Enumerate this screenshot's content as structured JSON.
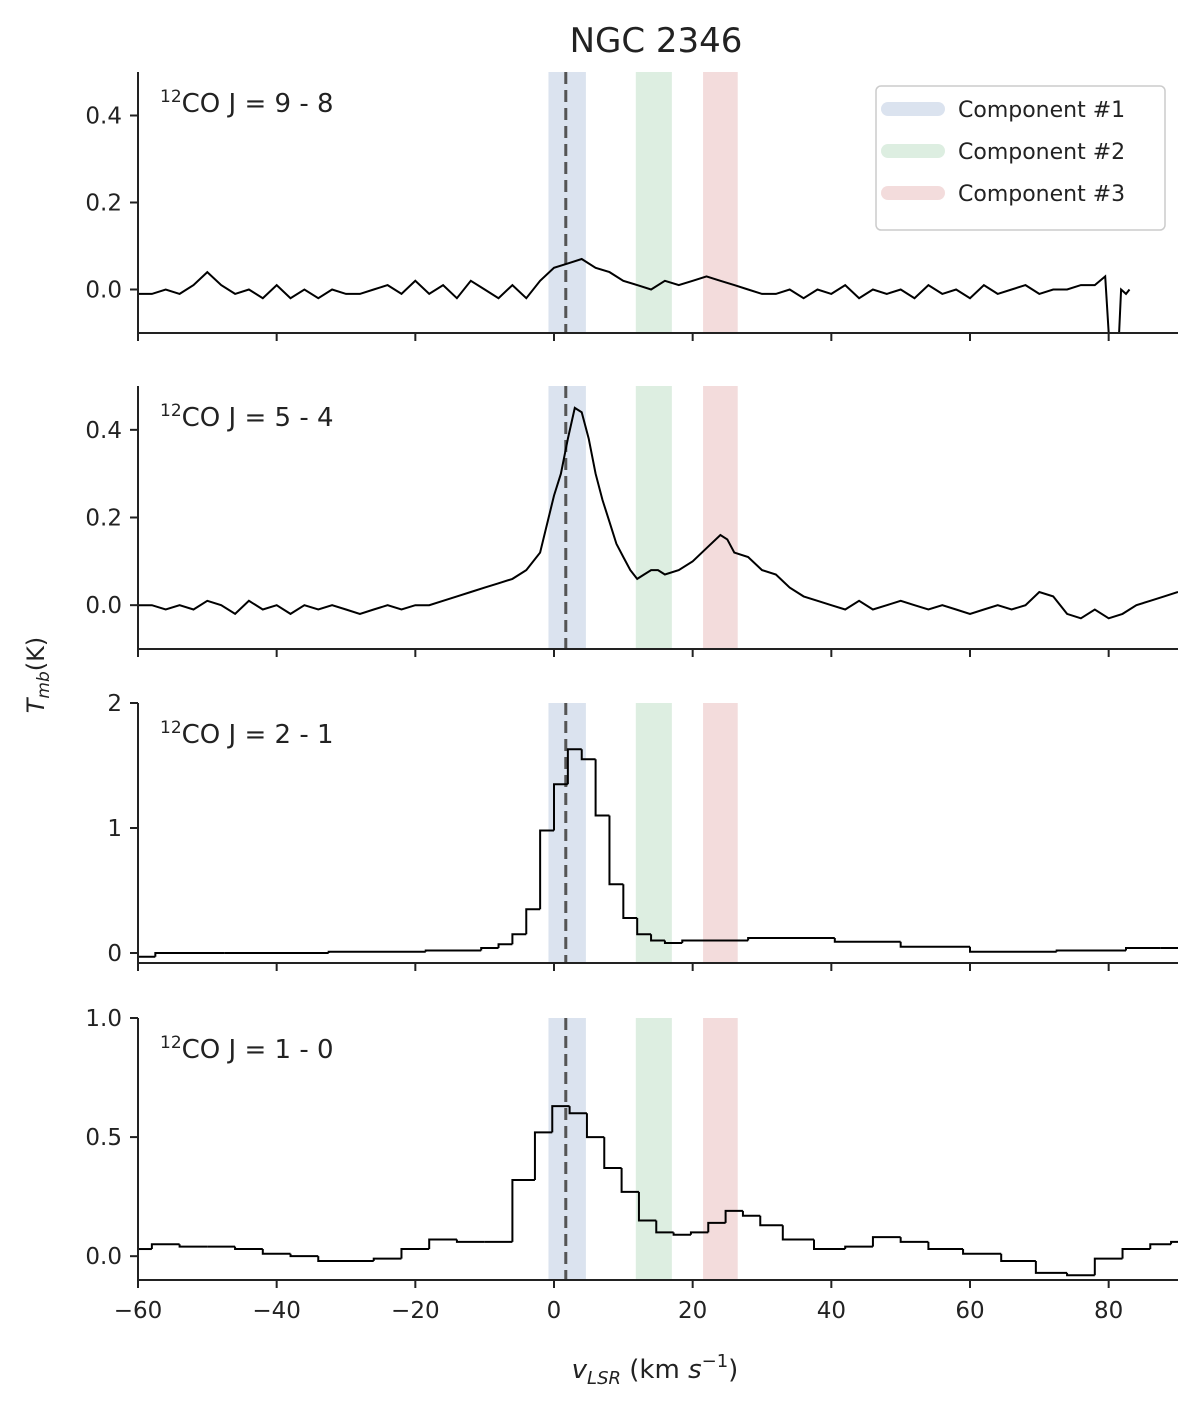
{
  "figure": {
    "title": "NGC 2346",
    "xlabel": [
      "v",
      "LSR",
      " (km ",
      "s",
      "−1",
      ")"
    ],
    "ylabel": [
      "T",
      "mb",
      "(K)"
    ],
    "xlim": [
      -60,
      90
    ],
    "xticks": [
      {
        "value": -60,
        "label": "−60"
      },
      {
        "value": -40,
        "label": "−40"
      },
      {
        "value": -20,
        "label": "−20"
      },
      0,
      20,
      40,
      60,
      80
    ],
    "reference_velocity": 1.7,
    "components": [
      {
        "name": "Component #1",
        "color": "#4c72b0",
        "xrange": [
          -0.8,
          4.6
        ]
      },
      {
        "name": "Component #2",
        "color": "#55a868",
        "xrange": [
          11.8,
          17.0
        ]
      },
      {
        "name": "Component #3",
        "color": "#c44e52",
        "xrange": [
          21.5,
          26.5
        ]
      }
    ],
    "legend": "upper right"
  },
  "chart_data": [
    {
      "type": "line",
      "label": {
        "isotope": "12",
        "text": "CO J = 9 - 8"
      },
      "ylim": [
        -0.1,
        0.5
      ],
      "yticks": [
        {
          "value": 0,
          "label": "0.0"
        },
        0.2,
        0.4
      ],
      "color": "#000000",
      "x": [
        -60,
        -58,
        -56,
        -54,
        -52,
        -50,
        -48,
        -46,
        -44,
        -42,
        -40,
        -38,
        -36,
        -34,
        -32,
        -30,
        -28,
        -26,
        -24,
        -22,
        -20,
        -18,
        -16,
        -14,
        -12,
        -10,
        -8,
        -6,
        -4,
        -2,
        0,
        2,
        4,
        6,
        8,
        10,
        12,
        14,
        16,
        18,
        20,
        22,
        24,
        26,
        28,
        30,
        32,
        34,
        36,
        38,
        40,
        42,
        44,
        46,
        48,
        50,
        52,
        54,
        56,
        58,
        60,
        62,
        64,
        66,
        68,
        70,
        72,
        74,
        76,
        78,
        79.5,
        80,
        81.5,
        81.8,
        82.5,
        83
      ],
      "values": [
        -0.01,
        -0.01,
        0.0,
        -0.01,
        0.01,
        0.04,
        0.01,
        -0.01,
        0.0,
        -0.02,
        0.01,
        -0.02,
        0.0,
        -0.02,
        0.0,
        -0.01,
        -0.01,
        0.0,
        0.01,
        -0.01,
        0.02,
        -0.01,
        0.01,
        -0.02,
        0.02,
        0.0,
        -0.02,
        0.01,
        -0.02,
        0.02,
        0.05,
        0.06,
        0.07,
        0.05,
        0.04,
        0.02,
        0.01,
        0.0,
        0.02,
        0.01,
        0.02,
        0.03,
        0.02,
        0.01,
        0.0,
        -0.01,
        -0.01,
        0.0,
        -0.02,
        0.0,
        -0.01,
        0.01,
        -0.02,
        0.0,
        -0.01,
        0.0,
        -0.02,
        0.01,
        -0.01,
        0.0,
        -0.02,
        0.01,
        -0.01,
        0.0,
        0.01,
        -0.01,
        0.0,
        0.0,
        0.01,
        0.01,
        0.03,
        -0.1,
        -0.1,
        0.0,
        -0.01,
        0.0
      ]
    },
    {
      "type": "line",
      "label": {
        "isotope": "12",
        "text": "CO J = 5 - 4"
      },
      "ylim": [
        -0.1,
        0.5
      ],
      "yticks": [
        {
          "value": 0,
          "label": "0.0"
        },
        0.2,
        0.4
      ],
      "color": "#000000",
      "x": [
        -60,
        -58,
        -56,
        -54,
        -52,
        -50,
        -48,
        -46,
        -44,
        -42,
        -40,
        -38,
        -36,
        -34,
        -32,
        -30,
        -28,
        -26,
        -24,
        -22,
        -20,
        -18,
        -16,
        -14,
        -12,
        -10,
        -8,
        -6,
        -4,
        -2,
        0,
        1,
        2,
        3,
        4,
        5,
        6,
        7,
        8,
        9,
        10,
        11,
        12,
        13,
        14,
        15,
        16,
        18,
        20,
        22,
        24,
        25,
        26,
        28,
        30,
        32,
        34,
        36,
        38,
        40,
        42,
        44,
        46,
        48,
        50,
        52,
        54,
        56,
        58,
        60,
        62,
        64,
        66,
        68,
        70,
        72,
        74,
        76,
        78,
        80,
        82,
        84,
        86,
        88,
        90
      ],
      "values": [
        0.0,
        0.0,
        -0.01,
        0.0,
        -0.01,
        0.01,
        0.0,
        -0.02,
        0.01,
        -0.01,
        0.0,
        -0.02,
        0.0,
        -0.01,
        0.0,
        -0.01,
        -0.02,
        -0.01,
        0.0,
        -0.01,
        0.0,
        0.0,
        0.01,
        0.02,
        0.03,
        0.04,
        0.05,
        0.06,
        0.08,
        0.12,
        0.25,
        0.3,
        0.38,
        0.45,
        0.44,
        0.38,
        0.3,
        0.24,
        0.19,
        0.14,
        0.11,
        0.08,
        0.06,
        0.07,
        0.08,
        0.08,
        0.07,
        0.08,
        0.1,
        0.13,
        0.16,
        0.15,
        0.12,
        0.11,
        0.08,
        0.07,
        0.04,
        0.02,
        0.01,
        0.0,
        -0.01,
        0.01,
        -0.01,
        0.0,
        0.01,
        0.0,
        -0.01,
        0.0,
        -0.01,
        -0.02,
        -0.01,
        0.0,
        -0.01,
        0.0,
        0.03,
        0.02,
        -0.02,
        -0.03,
        -0.01,
        -0.03,
        -0.02,
        0.0,
        0.01,
        0.02,
        0.03
      ]
    },
    {
      "type": "step",
      "label": {
        "isotope": "12",
        "text": "CO J = 2 - 1"
      },
      "ylim": [
        -0.08,
        2
      ],
      "yticks": [
        0,
        1,
        2
      ],
      "color": "#000000",
      "x": [
        -60,
        -55,
        -40,
        -25,
        -12,
        -9,
        -7,
        -5,
        -3,
        -1,
        1,
        3,
        5,
        7,
        9,
        11,
        13,
        15,
        17,
        20,
        36,
        45,
        55,
        65,
        80,
        85,
        90
      ],
      "values": [
        -0.03,
        0.0,
        0.0,
        0.01,
        0.02,
        0.04,
        0.07,
        0.15,
        0.35,
        0.98,
        1.35,
        1.63,
        1.55,
        1.1,
        0.55,
        0.28,
        0.15,
        0.1,
        0.08,
        0.1,
        0.12,
        0.09,
        0.05,
        0.01,
        0.02,
        0.04,
        0.04
      ]
    },
    {
      "type": "step",
      "label": {
        "isotope": "12",
        "text": "CO J = 1 - 0"
      },
      "ylim": [
        -0.1,
        1.0
      ],
      "yticks": [
        {
          "value": 0,
          "label": "0.0"
        },
        0.5,
        {
          "value": 1,
          "label": "1.0"
        }
      ],
      "color": "#000000",
      "x": [
        -60,
        -56,
        -52,
        -48,
        -44,
        -40,
        -36,
        -32,
        -28,
        -24,
        -20,
        -16,
        -12,
        -8,
        -4,
        -1.5,
        1,
        3.5,
        6,
        8.5,
        11,
        13.5,
        16,
        18.5,
        21,
        23.5,
        26,
        28.5,
        31,
        35,
        40,
        44,
        48,
        52,
        56,
        62,
        67,
        72,
        76,
        80,
        84,
        88,
        90
      ],
      "values": [
        0.03,
        0.05,
        0.04,
        0.04,
        0.03,
        0.01,
        0.0,
        -0.02,
        -0.02,
        -0.01,
        0.03,
        0.07,
        0.06,
        0.06,
        0.32,
        0.52,
        0.63,
        0.6,
        0.5,
        0.37,
        0.27,
        0.15,
        0.1,
        0.09,
        0.1,
        0.14,
        0.19,
        0.17,
        0.13,
        0.07,
        0.03,
        0.04,
        0.08,
        0.06,
        0.03,
        0.01,
        -0.02,
        -0.07,
        -0.08,
        -0.01,
        0.03,
        0.05,
        0.06
      ]
    }
  ]
}
